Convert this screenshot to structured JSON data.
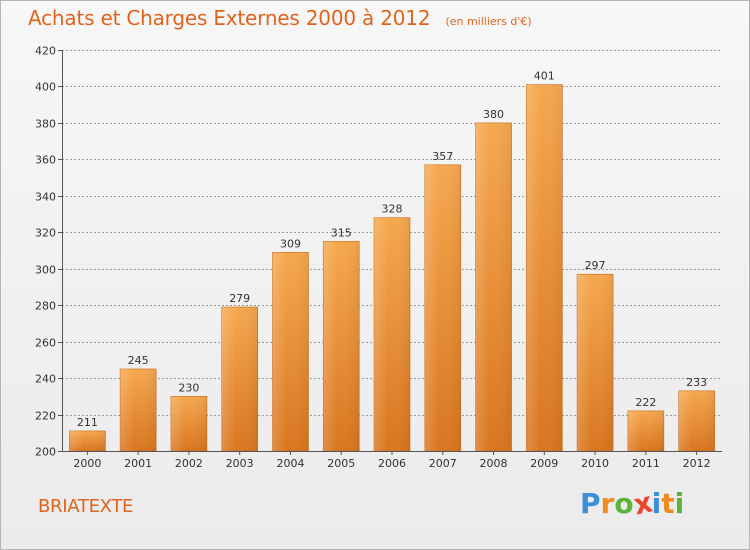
{
  "header": {
    "title": "Achats et Charges Externes 2000 à 2012",
    "subtitle": "(en milliers d'€)"
  },
  "footer": {
    "commune": "BRIATEXTE",
    "logo_letters": [
      {
        "char": "P",
        "color": "#3b8fd9"
      },
      {
        "char": "r",
        "color": "#f08a1e"
      },
      {
        "char": "o",
        "color": "#5bb33b"
      },
      {
        "char": "x",
        "color": "#e8442e"
      },
      {
        "char": "i",
        "color": "#3b8fd9"
      },
      {
        "char": "t",
        "color": "#f08a1e"
      },
      {
        "char": "i",
        "color": "#5bb33b"
      }
    ]
  },
  "colors": {
    "bar_top": "#f6a84f",
    "bar_bottom": "#d9761f",
    "grid": "#9a9a9a",
    "text": "#333333"
  },
  "chart_data": {
    "type": "bar",
    "title": "Achats et Charges Externes 2000 à 2012",
    "subtitle": "(en milliers d'€)",
    "categories": [
      "2000",
      "2001",
      "2002",
      "2003",
      "2004",
      "2005",
      "2006",
      "2007",
      "2008",
      "2009",
      "2010",
      "2011",
      "2012"
    ],
    "values": [
      211,
      245,
      230,
      279,
      309,
      315,
      328,
      357,
      380,
      401,
      297,
      222,
      233
    ],
    "ylim": [
      200,
      420
    ],
    "yticks": [
      200,
      220,
      240,
      260,
      280,
      300,
      320,
      340,
      360,
      380,
      400,
      420
    ],
    "grid": true,
    "data_labels": true
  }
}
